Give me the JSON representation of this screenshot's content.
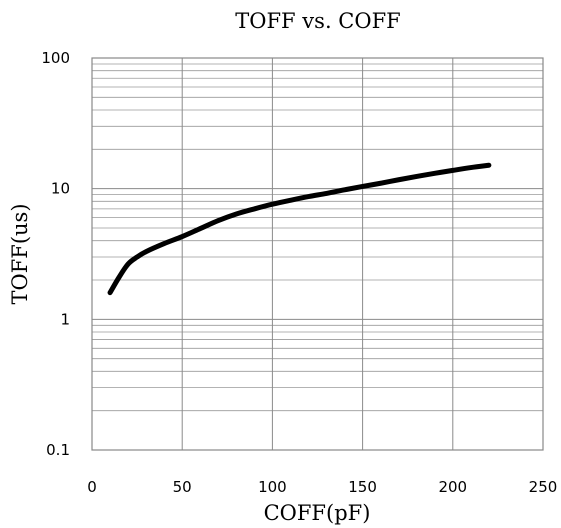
{
  "chart_data": {
    "type": "line",
    "title": "TOFF vs. COFF",
    "xlabel": "COFF(pF)",
    "ylabel": "TOFF(us)",
    "xlim": [
      0,
      250
    ],
    "ylim": [
      0.1,
      100
    ],
    "y_scale": "log",
    "grid": true,
    "x_ticks": [
      0,
      50,
      100,
      150,
      200,
      250
    ],
    "y_ticks": [
      0.1,
      1,
      10,
      100
    ],
    "x_tick_labels": [
      "0",
      "50",
      "100",
      "150",
      "200",
      "250"
    ],
    "y_tick_labels": [
      "0.1",
      "1",
      "10",
      "100"
    ],
    "series": [
      {
        "x": [
          10,
          15,
          20,
          25,
          30,
          40,
          50,
          60,
          70,
          80,
          90,
          100,
          110,
          120,
          130,
          140,
          150,
          160,
          170,
          180,
          190,
          200,
          210,
          220
        ],
        "y": [
          1.6,
          2.1,
          2.65,
          3.0,
          3.3,
          3.8,
          4.3,
          4.95,
          5.7,
          6.4,
          7.0,
          7.6,
          8.15,
          8.7,
          9.2,
          9.8,
          10.4,
          11.0,
          11.7,
          12.4,
          13.1,
          13.8,
          14.5,
          15.1
        ],
        "color": "#000000"
      }
    ]
  }
}
